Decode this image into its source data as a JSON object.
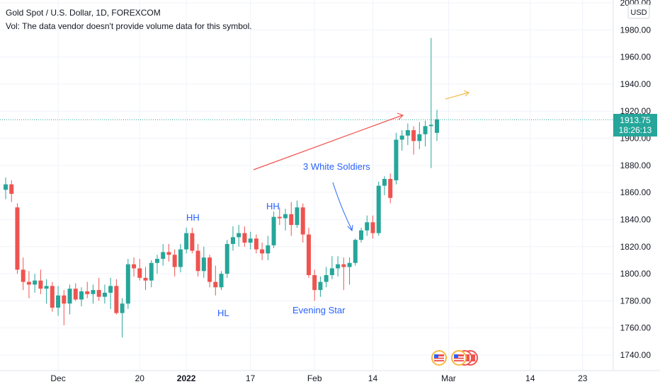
{
  "header": {
    "symbol_line": "Gold Spot / U.S. Dollar, 1D, FOREXCOM",
    "volume_note": "Vol: The data vendor doesn't provide volume data for this symbol."
  },
  "price_axis": {
    "currency": "USD"
  },
  "current_price": {
    "value": "1913.75",
    "countdown": "18:26:13"
  },
  "colors": {
    "up": "#26a69a",
    "down": "#ef5350",
    "annotation_blue": "#2962ff",
    "trend_red": "#ef5350",
    "arrow_orange": "#f5b942",
    "grid": "#f0f3fa"
  },
  "chart_data": {
    "type": "candlestick",
    "title": "Gold Spot / U.S. Dollar, 1D, FOREXCOM",
    "ylim": [
      1725,
      2000
    ],
    "y_ticks": [
      1740,
      1760,
      1780,
      1800,
      1820,
      1840,
      1860,
      1880,
      1900,
      1920,
      1940,
      1960,
      1980,
      2000
    ],
    "y_tick_labels": [
      "1740.00",
      "1760.00",
      "1780.00",
      "1800.00",
      "1820.00",
      "1840.00",
      "1860.00",
      "1880.00",
      "1900.00",
      "1920.00",
      "1940.00",
      "1960.00",
      "1980.00",
      "2000.00"
    ],
    "x_tick_labels": [
      {
        "label": "Dec",
        "bar": 9
      },
      {
        "label": "20",
        "bar": 23
      },
      {
        "label": "2022",
        "bar": 31
      },
      {
        "label": "17",
        "bar": 42
      },
      {
        "label": "Feb",
        "bar": 53
      },
      {
        "label": "14",
        "bar": 63
      },
      {
        "label": "Mar",
        "bar": 76
      },
      {
        "label": "14",
        "bar": 90
      },
      {
        "label": "23",
        "bar": 99
      }
    ],
    "candles": [
      {
        "o": 1862,
        "h": 1871,
        "l": 1855,
        "c": 1866
      },
      {
        "o": 1866,
        "h": 1869,
        "l": 1853,
        "c": 1859
      },
      {
        "o": 1849,
        "h": 1852,
        "l": 1800,
        "c": 1803
      },
      {
        "o": 1803,
        "h": 1812,
        "l": 1788,
        "c": 1794
      },
      {
        "o": 1794,
        "h": 1802,
        "l": 1782,
        "c": 1792
      },
      {
        "o": 1792,
        "h": 1800,
        "l": 1786,
        "c": 1795
      },
      {
        "o": 1795,
        "h": 1803,
        "l": 1785,
        "c": 1789
      },
      {
        "o": 1789,
        "h": 1796,
        "l": 1778,
        "c": 1791
      },
      {
        "o": 1791,
        "h": 1794,
        "l": 1772,
        "c": 1775
      },
      {
        "o": 1775,
        "h": 1791,
        "l": 1769,
        "c": 1784
      },
      {
        "o": 1784,
        "h": 1788,
        "l": 1762,
        "c": 1778
      },
      {
        "o": 1778,
        "h": 1792,
        "l": 1770,
        "c": 1789
      },
      {
        "o": 1789,
        "h": 1793,
        "l": 1780,
        "c": 1781
      },
      {
        "o": 1781,
        "h": 1790,
        "l": 1776,
        "c": 1787
      },
      {
        "o": 1787,
        "h": 1794,
        "l": 1782,
        "c": 1785
      },
      {
        "o": 1785,
        "h": 1792,
        "l": 1778,
        "c": 1788
      },
      {
        "o": 1788,
        "h": 1797,
        "l": 1780,
        "c": 1783
      },
      {
        "o": 1783,
        "h": 1792,
        "l": 1778,
        "c": 1786
      },
      {
        "o": 1786,
        "h": 1797,
        "l": 1774,
        "c": 1791
      },
      {
        "o": 1791,
        "h": 1796,
        "l": 1770,
        "c": 1771
      },
      {
        "o": 1771,
        "h": 1782,
        "l": 1753,
        "c": 1778
      },
      {
        "o": 1778,
        "h": 1811,
        "l": 1774,
        "c": 1807
      },
      {
        "o": 1807,
        "h": 1812,
        "l": 1798,
        "c": 1804
      },
      {
        "o": 1804,
        "h": 1811,
        "l": 1795,
        "c": 1797
      },
      {
        "o": 1797,
        "h": 1805,
        "l": 1788,
        "c": 1795
      },
      {
        "o": 1795,
        "h": 1810,
        "l": 1790,
        "c": 1808
      },
      {
        "o": 1808,
        "h": 1814,
        "l": 1800,
        "c": 1811
      },
      {
        "o": 1811,
        "h": 1822,
        "l": 1806,
        "c": 1816
      },
      {
        "o": 1816,
        "h": 1822,
        "l": 1809,
        "c": 1814
      },
      {
        "o": 1814,
        "h": 1818,
        "l": 1798,
        "c": 1805
      },
      {
        "o": 1805,
        "h": 1822,
        "l": 1801,
        "c": 1818
      },
      {
        "o": 1818,
        "h": 1834,
        "l": 1815,
        "c": 1830
      },
      {
        "o": 1830,
        "h": 1834,
        "l": 1815,
        "c": 1817
      },
      {
        "o": 1817,
        "h": 1822,
        "l": 1798,
        "c": 1802
      },
      {
        "o": 1802,
        "h": 1820,
        "l": 1797,
        "c": 1812
      },
      {
        "o": 1812,
        "h": 1814,
        "l": 1790,
        "c": 1794
      },
      {
        "o": 1794,
        "h": 1806,
        "l": 1784,
        "c": 1790
      },
      {
        "o": 1790,
        "h": 1802,
        "l": 1788,
        "c": 1800
      },
      {
        "o": 1800,
        "h": 1825,
        "l": 1797,
        "c": 1822
      },
      {
        "o": 1822,
        "h": 1835,
        "l": 1817,
        "c": 1827
      },
      {
        "o": 1827,
        "h": 1836,
        "l": 1820,
        "c": 1830
      },
      {
        "o": 1830,
        "h": 1835,
        "l": 1820,
        "c": 1823
      },
      {
        "o": 1823,
        "h": 1831,
        "l": 1818,
        "c": 1826
      },
      {
        "o": 1826,
        "h": 1829,
        "l": 1815,
        "c": 1818
      },
      {
        "o": 1818,
        "h": 1823,
        "l": 1810,
        "c": 1815
      },
      {
        "o": 1815,
        "h": 1828,
        "l": 1810,
        "c": 1821
      },
      {
        "o": 1821,
        "h": 1846,
        "l": 1819,
        "c": 1842
      },
      {
        "o": 1842,
        "h": 1849,
        "l": 1836,
        "c": 1841
      },
      {
        "o": 1841,
        "h": 1848,
        "l": 1832,
        "c": 1844
      },
      {
        "o": 1844,
        "h": 1853,
        "l": 1828,
        "c": 1836
      },
      {
        "o": 1836,
        "h": 1854,
        "l": 1834,
        "c": 1849
      },
      {
        "o": 1849,
        "h": 1852,
        "l": 1823,
        "c": 1829
      },
      {
        "o": 1829,
        "h": 1834,
        "l": 1797,
        "c": 1799
      },
      {
        "o": 1799,
        "h": 1803,
        "l": 1780,
        "c": 1788
      },
      {
        "o": 1788,
        "h": 1798,
        "l": 1783,
        "c": 1794
      },
      {
        "o": 1794,
        "h": 1805,
        "l": 1790,
        "c": 1799
      },
      {
        "o": 1799,
        "h": 1813,
        "l": 1796,
        "c": 1804
      },
      {
        "o": 1804,
        "h": 1813,
        "l": 1798,
        "c": 1807
      },
      {
        "o": 1807,
        "h": 1812,
        "l": 1788,
        "c": 1805
      },
      {
        "o": 1805,
        "h": 1812,
        "l": 1792,
        "c": 1808
      },
      {
        "o": 1808,
        "h": 1826,
        "l": 1806,
        "c": 1825
      },
      {
        "o": 1825,
        "h": 1834,
        "l": 1823,
        "c": 1832
      },
      {
        "o": 1832,
        "h": 1843,
        "l": 1828,
        "c": 1838
      },
      {
        "o": 1838,
        "h": 1843,
        "l": 1826,
        "c": 1830
      },
      {
        "o": 1830,
        "h": 1868,
        "l": 1828,
        "c": 1865
      },
      {
        "o": 1865,
        "h": 1872,
        "l": 1858,
        "c": 1870
      },
      {
        "o": 1870,
        "h": 1874,
        "l": 1852,
        "c": 1856
      },
      {
        "o": 1869,
        "h": 1904,
        "l": 1866,
        "c": 1899
      },
      {
        "o": 1899,
        "h": 1906,
        "l": 1891,
        "c": 1902
      },
      {
        "o": 1902,
        "h": 1911,
        "l": 1895,
        "c": 1906
      },
      {
        "o": 1906,
        "h": 1909,
        "l": 1888,
        "c": 1898
      },
      {
        "o": 1898,
        "h": 1912,
        "l": 1892,
        "c": 1903
      },
      {
        "o": 1903,
        "h": 1913,
        "l": 1894,
        "c": 1909
      },
      {
        "o": 1909,
        "h": 1974,
        "l": 1878,
        "c": 1910
      },
      {
        "o": 1904,
        "h": 1921,
        "l": 1898,
        "c": 1914
      }
    ],
    "annotations": [
      "HH",
      "HL",
      "HH",
      "Evening Star",
      "3 White Soldiers"
    ]
  }
}
